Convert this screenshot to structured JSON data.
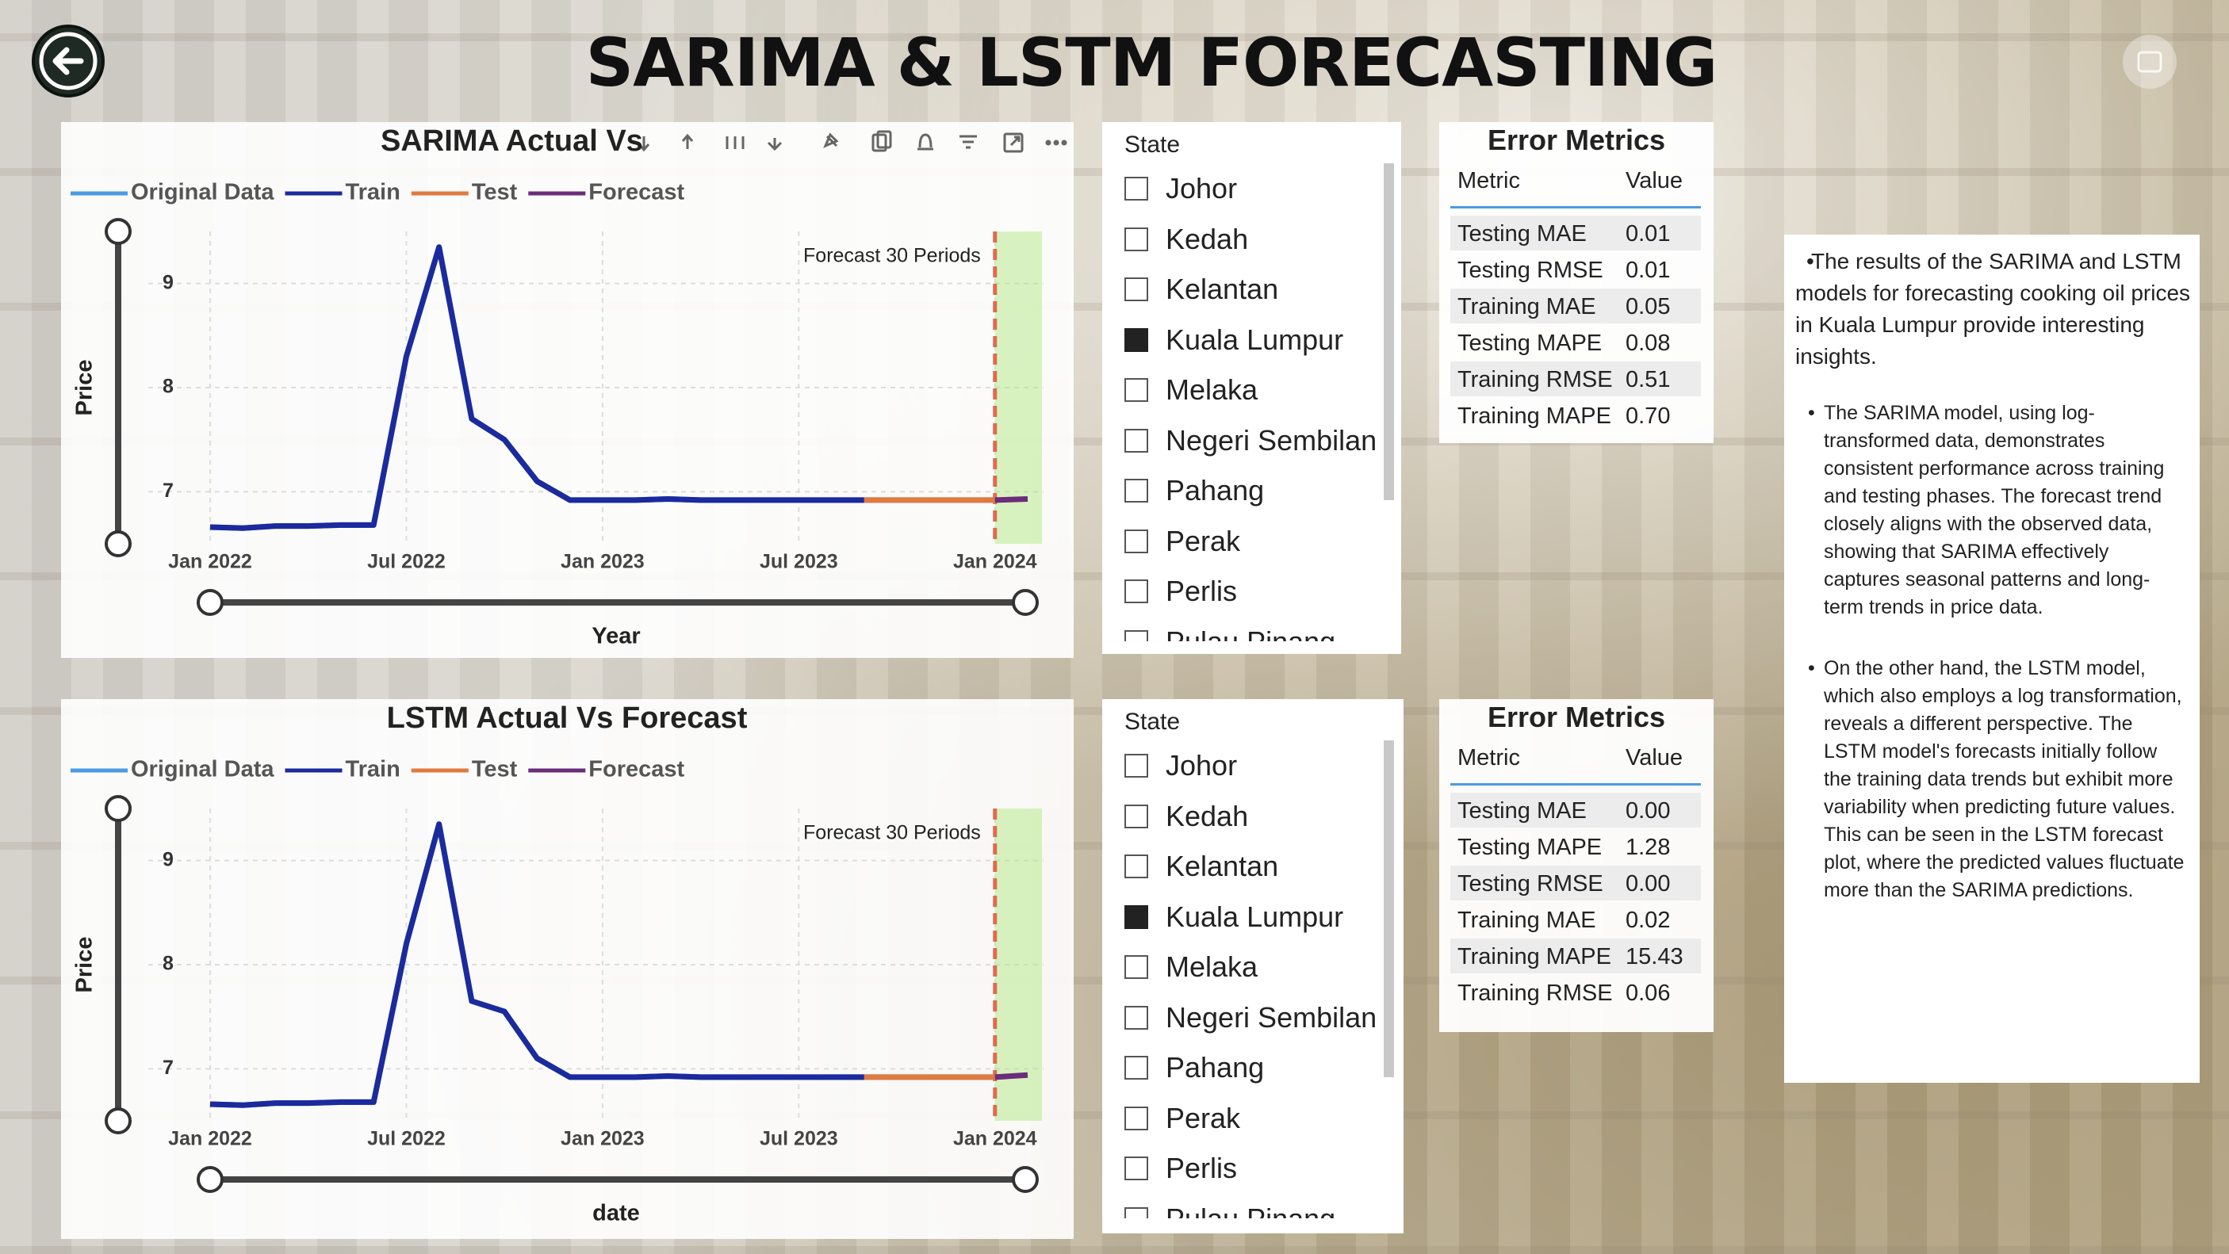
{
  "title": "SARIMA & LSTM FORECASTING",
  "chart_data": [
    {
      "type": "line",
      "title": "SARIMA Actual Vs",
      "xlabel": "Year",
      "ylabel": "Price",
      "annotation": "Forecast 30 Periods",
      "x": [
        "Jan 2022",
        "Feb 2022",
        "Mar 2022",
        "Apr 2022",
        "May 2022",
        "Jun 2022",
        "Jul 2022",
        "Aug 2022",
        "Sep 2022",
        "Oct 2022",
        "Nov 2022",
        "Dec 2022",
        "Jan 2023",
        "Feb 2023",
        "Mar 2023",
        "Apr 2023",
        "May 2023",
        "Jun 2023",
        "Jul 2023",
        "Aug 2023",
        "Sep 2023",
        "Oct 2023",
        "Nov 2023",
        "Dec 2023",
        "Jan 2024",
        "Feb 2024"
      ],
      "series": [
        {
          "name": "Original Data",
          "color": "#4a9be3",
          "values": [
            6.66,
            6.65,
            6.67,
            6.67,
            6.68,
            6.68,
            8.3,
            9.35,
            7.7,
            7.5,
            7.1,
            6.92,
            6.92,
            6.92,
            6.93,
            6.92,
            6.92,
            6.92,
            6.92,
            6.92,
            6.92,
            6.92,
            6.92,
            6.92,
            6.92,
            null
          ]
        },
        {
          "name": "Train",
          "color": "#1b2a9c",
          "values": [
            6.66,
            6.65,
            6.67,
            6.67,
            6.68,
            6.68,
            8.3,
            9.35,
            7.7,
            7.5,
            7.1,
            6.92,
            6.92,
            6.92,
            6.93,
            6.92,
            6.92,
            6.92,
            6.92,
            6.92,
            6.92,
            null,
            null,
            null,
            null,
            null
          ]
        },
        {
          "name": "Test",
          "color": "#e07a3f",
          "values": [
            null,
            null,
            null,
            null,
            null,
            null,
            null,
            null,
            null,
            null,
            null,
            null,
            null,
            null,
            null,
            null,
            null,
            null,
            null,
            null,
            6.92,
            6.92,
            6.92,
            6.92,
            6.92,
            null
          ]
        },
        {
          "name": "Forecast",
          "color": "#6b2d7a",
          "values": [
            null,
            null,
            null,
            null,
            null,
            null,
            null,
            null,
            null,
            null,
            null,
            null,
            null,
            null,
            null,
            null,
            null,
            null,
            null,
            null,
            null,
            null,
            null,
            null,
            6.92,
            6.93
          ]
        }
      ],
      "xticks": [
        "Jan 2022",
        "Jul 2022",
        "Jan 2023",
        "Jul 2023",
        "Jan 2024"
      ],
      "ylim": [
        6.5,
        9.5
      ],
      "yticks": [
        7,
        8,
        9
      ],
      "grid": true
    },
    {
      "type": "line",
      "title": "LSTM Actual Vs Forecast",
      "xlabel": "date",
      "ylabel": "Price",
      "annotation": "Forecast 30 Periods",
      "x": [
        "Jan 2022",
        "Feb 2022",
        "Mar 2022",
        "Apr 2022",
        "May 2022",
        "Jun 2022",
        "Jul 2022",
        "Aug 2022",
        "Sep 2022",
        "Oct 2022",
        "Nov 2022",
        "Dec 2022",
        "Jan 2023",
        "Feb 2023",
        "Mar 2023",
        "Apr 2023",
        "May 2023",
        "Jun 2023",
        "Jul 2023",
        "Aug 2023",
        "Sep 2023",
        "Oct 2023",
        "Nov 2023",
        "Dec 2023",
        "Jan 2024",
        "Feb 2024"
      ],
      "series": [
        {
          "name": "Original Data",
          "color": "#4a9be3",
          "values": [
            6.66,
            6.65,
            6.67,
            6.67,
            6.68,
            6.68,
            8.2,
            9.35,
            7.65,
            7.55,
            7.1,
            6.92,
            6.92,
            6.92,
            6.93,
            6.92,
            6.92,
            6.92,
            6.92,
            6.92,
            6.92,
            6.92,
            6.92,
            6.92,
            6.92,
            null
          ]
        },
        {
          "name": "Train",
          "color": "#1b2a9c",
          "values": [
            6.66,
            6.65,
            6.67,
            6.67,
            6.68,
            6.68,
            8.2,
            9.35,
            7.65,
            7.55,
            7.1,
            6.92,
            6.92,
            6.92,
            6.93,
            6.92,
            6.92,
            6.92,
            6.92,
            6.92,
            6.92,
            null,
            null,
            null,
            null,
            null
          ]
        },
        {
          "name": "Test",
          "color": "#e07a3f",
          "values": [
            null,
            null,
            null,
            null,
            null,
            null,
            null,
            null,
            null,
            null,
            null,
            null,
            null,
            null,
            null,
            null,
            null,
            null,
            null,
            null,
            6.92,
            6.92,
            6.92,
            6.92,
            6.92,
            null
          ]
        },
        {
          "name": "Forecast",
          "color": "#6b2d7a",
          "values": [
            null,
            null,
            null,
            null,
            null,
            null,
            null,
            null,
            null,
            null,
            null,
            null,
            null,
            null,
            null,
            null,
            null,
            null,
            null,
            null,
            null,
            null,
            null,
            null,
            6.92,
            6.94
          ]
        }
      ],
      "xticks": [
        "Jan 2022",
        "Jul 2022",
        "Jan 2023",
        "Jul 2023",
        "Jan 2024"
      ],
      "ylim": [
        6.5,
        9.5
      ],
      "yticks": [
        7,
        8,
        9
      ],
      "grid": true
    }
  ],
  "slicers": [
    {
      "title": "State",
      "items": [
        {
          "label": "Johor",
          "checked": false
        },
        {
          "label": "Kedah",
          "checked": false
        },
        {
          "label": "Kelantan",
          "checked": false
        },
        {
          "label": "Kuala Lumpur",
          "checked": true
        },
        {
          "label": "Melaka",
          "checked": false
        },
        {
          "label": "Negeri Sembilan",
          "checked": false
        },
        {
          "label": "Pahang",
          "checked": false
        },
        {
          "label": "Perak",
          "checked": false
        },
        {
          "label": "Perlis",
          "checked": false
        },
        {
          "label": "Pulau Pinang",
          "checked": false
        }
      ]
    },
    {
      "title": "State",
      "items": [
        {
          "label": "Johor",
          "checked": false
        },
        {
          "label": "Kedah",
          "checked": false
        },
        {
          "label": "Kelantan",
          "checked": false
        },
        {
          "label": "Kuala Lumpur",
          "checked": true
        },
        {
          "label": "Melaka",
          "checked": false
        },
        {
          "label": "Negeri Sembilan",
          "checked": false
        },
        {
          "label": "Pahang",
          "checked": false
        },
        {
          "label": "Perak",
          "checked": false
        },
        {
          "label": "Perlis",
          "checked": false
        },
        {
          "label": "Pulau Pinang",
          "checked": false
        }
      ]
    }
  ],
  "metrics": [
    {
      "title": "Error Metrics",
      "columns": [
        "Metric",
        "Value"
      ],
      "rows": [
        [
          "Testing MAE",
          "0.01"
        ],
        [
          "Testing RMSE",
          "0.01"
        ],
        [
          "Training MAE",
          "0.05"
        ],
        [
          "Testing MAPE",
          "0.08"
        ],
        [
          "Training RMSE",
          "0.51"
        ],
        [
          "Training MAPE",
          "0.70"
        ]
      ]
    },
    {
      "title": "Error Metrics",
      "columns": [
        "Metric",
        "Value"
      ],
      "rows": [
        [
          "Testing MAE",
          "0.00"
        ],
        [
          "Testing MAPE",
          "1.28"
        ],
        [
          "Testing RMSE",
          "0.00"
        ],
        [
          "Training MAE",
          "0.02"
        ],
        [
          "Training MAPE",
          "15.43"
        ],
        [
          "Training RMSE",
          "0.06"
        ]
      ]
    }
  ],
  "notes": [
    "The results of the SARIMA and LSTM models for forecasting cooking oil prices in Kuala Lumpur provide interesting insights.",
    "The SARIMA model, using log-transformed data, demonstrates consistent performance across training and testing phases. The forecast trend closely aligns with the observed data, showing that SARIMA effectively captures seasonal patterns and long-term trends in price data.",
    "On the other hand, the LSTM model, which also employs a log transformation, reveals a different perspective. The LSTM model's forecasts initially follow the training data trends but exhibit more variability when predicting future values. This can be seen in the LSTM forecast plot, where the predicted values fluctuate more than the SARIMA predictions."
  ]
}
